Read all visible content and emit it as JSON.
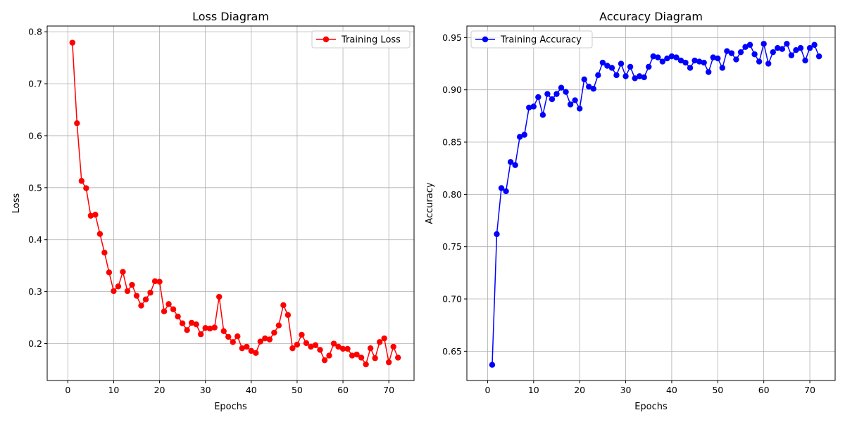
{
  "chart_data": [
    {
      "type": "line",
      "title": "Loss Diagram",
      "xlabel": "Epochs",
      "ylabel": "Loss",
      "xlim": [
        -4.5,
        75.5
      ],
      "ylim": [
        0.129,
        0.811
      ],
      "xticks": [
        0,
        10,
        20,
        30,
        40,
        50,
        60,
        70
      ],
      "yticks": [
        0.2,
        0.3,
        0.4,
        0.5,
        0.6,
        0.7,
        0.8
      ],
      "xtick_labels": [
        "0",
        "10",
        "20",
        "30",
        "40",
        "50",
        "60",
        "70"
      ],
      "ytick_labels": [
        "0.2",
        "0.3",
        "0.4",
        "0.5",
        "0.6",
        "0.7",
        "0.8"
      ],
      "grid": true,
      "legend": "top-right",
      "color": "#ff0000",
      "series": [
        {
          "name": "Training Loss",
          "x": [
            1,
            2,
            3,
            4,
            5,
            6,
            7,
            8,
            9,
            10,
            11,
            12,
            13,
            14,
            15,
            16,
            17,
            18,
            19,
            20,
            21,
            22,
            23,
            24,
            25,
            26,
            27,
            28,
            29,
            30,
            31,
            32,
            33,
            34,
            35,
            36,
            37,
            38,
            39,
            40,
            41,
            42,
            43,
            44,
            45,
            46,
            47,
            48,
            49,
            50,
            51,
            52,
            53,
            54,
            55,
            56,
            57,
            58,
            59,
            60,
            61,
            62,
            63,
            64,
            65,
            66,
            67,
            68,
            69,
            70,
            71,
            72
          ],
          "values": [
            0.779,
            0.624,
            0.513,
            0.499,
            0.446,
            0.448,
            0.411,
            0.375,
            0.337,
            0.301,
            0.31,
            0.338,
            0.301,
            0.313,
            0.292,
            0.273,
            0.285,
            0.298,
            0.32,
            0.319,
            0.262,
            0.276,
            0.266,
            0.252,
            0.239,
            0.226,
            0.24,
            0.237,
            0.218,
            0.23,
            0.229,
            0.231,
            0.29,
            0.224,
            0.213,
            0.203,
            0.214,
            0.191,
            0.194,
            0.186,
            0.182,
            0.204,
            0.21,
            0.208,
            0.221,
            0.235,
            0.274,
            0.255,
            0.191,
            0.198,
            0.217,
            0.201,
            0.194,
            0.197,
            0.188,
            0.168,
            0.177,
            0.2,
            0.194,
            0.19,
            0.19,
            0.177,
            0.179,
            0.173,
            0.16,
            0.191,
            0.172,
            0.203,
            0.21,
            0.164,
            0.194,
            0.173
          ]
        }
      ]
    },
    {
      "type": "line",
      "title": "Accuracy Diagram",
      "xlabel": "Epochs",
      "ylabel": "Accuracy",
      "xlim": [
        -4.5,
        75.5
      ],
      "ylim": [
        0.622,
        0.961
      ],
      "xticks": [
        0,
        10,
        20,
        30,
        40,
        50,
        60,
        70
      ],
      "yticks": [
        0.65,
        0.7,
        0.75,
        0.8,
        0.85,
        0.9,
        0.95
      ],
      "xtick_labels": [
        "0",
        "10",
        "20",
        "30",
        "40",
        "50",
        "60",
        "70"
      ],
      "ytick_labels": [
        "0.65",
        "0.70",
        "0.75",
        "0.80",
        "0.85",
        "0.90",
        "0.95"
      ],
      "grid": true,
      "legend": "top-left",
      "color": "#0000ff",
      "series": [
        {
          "name": "Training Accuracy",
          "x": [
            1,
            2,
            3,
            4,
            5,
            6,
            7,
            8,
            9,
            10,
            11,
            12,
            13,
            14,
            15,
            16,
            17,
            18,
            19,
            20,
            21,
            22,
            23,
            24,
            25,
            26,
            27,
            28,
            29,
            30,
            31,
            32,
            33,
            34,
            35,
            36,
            37,
            38,
            39,
            40,
            41,
            42,
            43,
            44,
            45,
            46,
            47,
            48,
            49,
            50,
            51,
            52,
            53,
            54,
            55,
            56,
            57,
            58,
            59,
            60,
            61,
            62,
            63,
            64,
            65,
            66,
            67,
            68,
            69,
            70,
            71,
            72
          ],
          "values": [
            0.637,
            0.762,
            0.806,
            0.803,
            0.831,
            0.828,
            0.855,
            0.857,
            0.883,
            0.884,
            0.893,
            0.876,
            0.896,
            0.891,
            0.896,
            0.902,
            0.898,
            0.886,
            0.89,
            0.882,
            0.91,
            0.903,
            0.901,
            0.914,
            0.926,
            0.923,
            0.921,
            0.914,
            0.925,
            0.913,
            0.922,
            0.911,
            0.913,
            0.912,
            0.922,
            0.932,
            0.931,
            0.927,
            0.93,
            0.932,
            0.931,
            0.928,
            0.926,
            0.921,
            0.928,
            0.927,
            0.926,
            0.917,
            0.931,
            0.93,
            0.921,
            0.937,
            0.935,
            0.929,
            0.936,
            0.941,
            0.943,
            0.934,
            0.927,
            0.944,
            0.925,
            0.936,
            0.94,
            0.939,
            0.944,
            0.933,
            0.938,
            0.94,
            0.928,
            0.94,
            0.943,
            0.932
          ]
        }
      ]
    }
  ]
}
